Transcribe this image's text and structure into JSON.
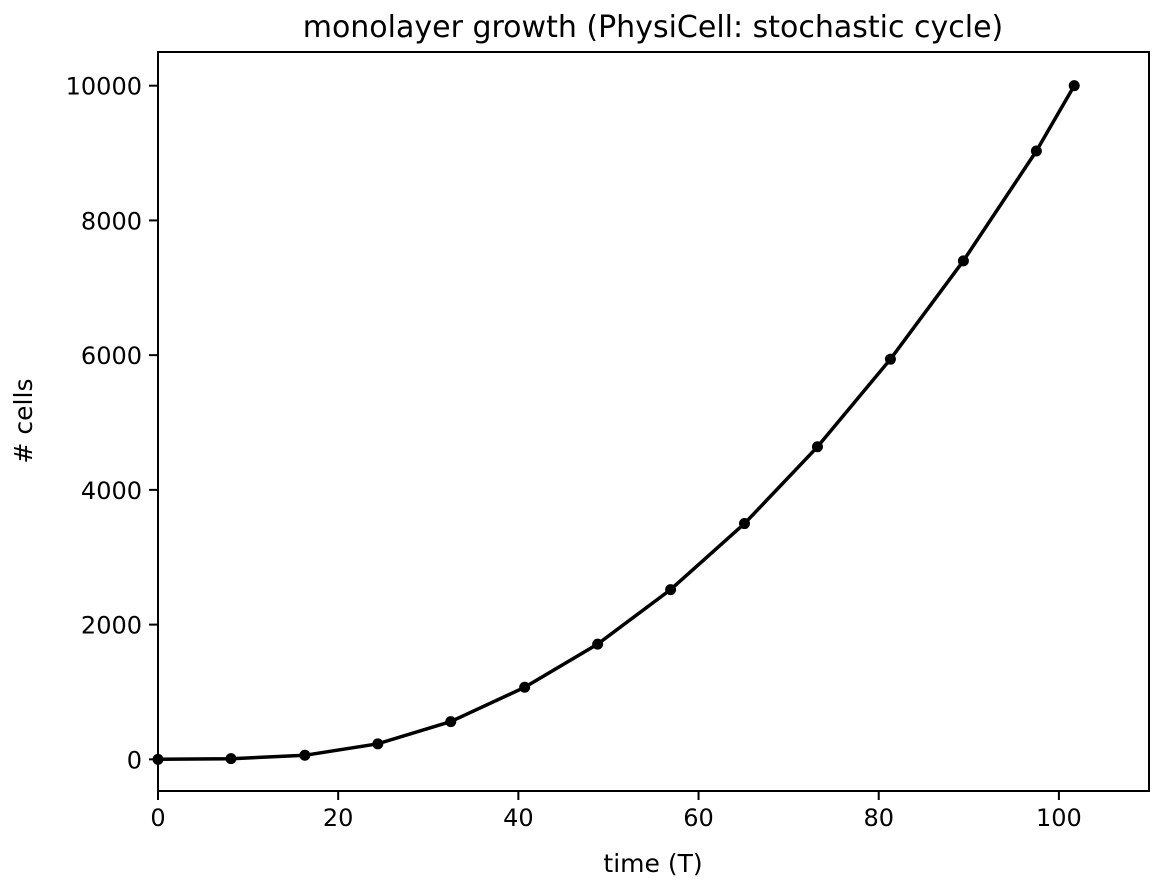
{
  "chart_data": {
    "type": "line",
    "title": "monolayer growth (PhysiCell: stochastic cycle)",
    "xlabel": "time (T)",
    "ylabel": "# cells",
    "xlim": [
      0,
      110
    ],
    "ylim": [
      -470,
      10500
    ],
    "xticks": [
      0,
      20,
      40,
      60,
      80,
      100
    ],
    "xtick_labels": [
      "0",
      "20",
      "40",
      "60",
      "80",
      "100"
    ],
    "yticks": [
      0,
      2000,
      4000,
      6000,
      8000,
      10000
    ],
    "ytick_labels": [
      "0",
      "2000",
      "4000",
      "6000",
      "8000",
      "10000"
    ],
    "grid": false,
    "legend": false,
    "series": [
      {
        "color": "#000000",
        "marker": "circle",
        "x": [
          0,
          8.1,
          16.3,
          24.4,
          32.5,
          40.7,
          48.8,
          56.9,
          65.1,
          73.2,
          81.3,
          89.4,
          97.5,
          101.7
        ],
        "y": [
          0,
          10,
          60,
          230,
          560,
          1070,
          1710,
          2520,
          3500,
          4640,
          5940,
          7400,
          9030,
          10000
        ]
      }
    ]
  }
}
